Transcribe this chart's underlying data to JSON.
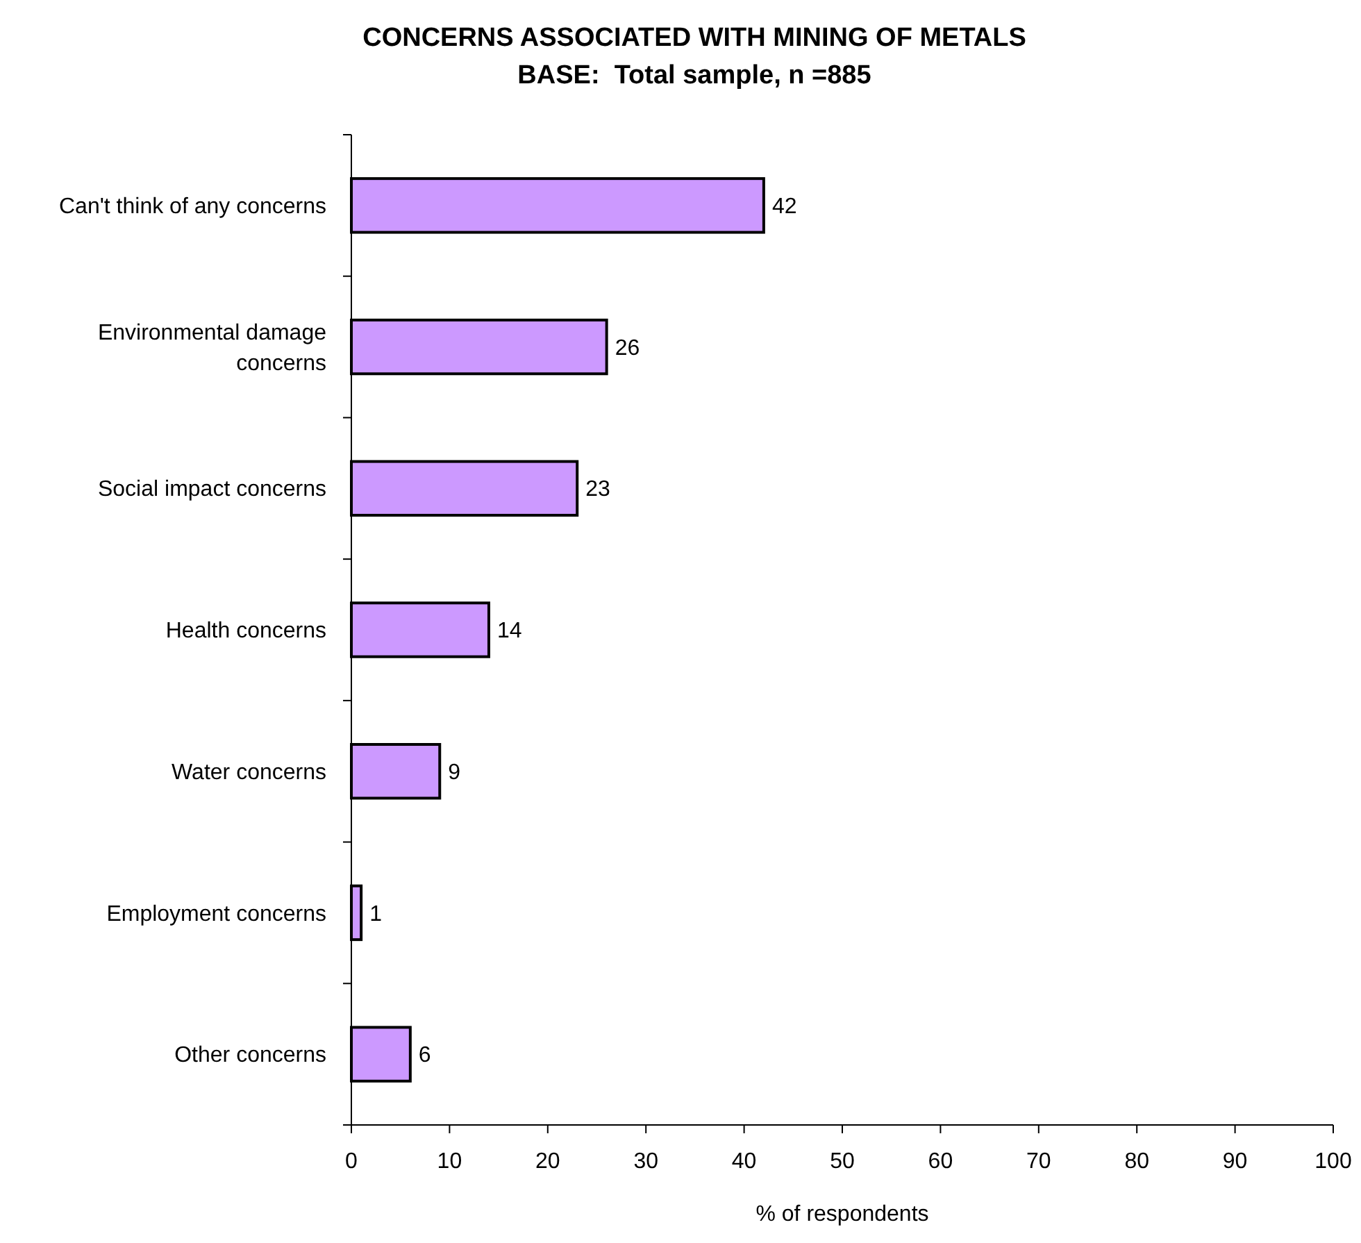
{
  "chart_data": {
    "type": "bar",
    "orientation": "horizontal",
    "title": "CONCERNS ASSOCIATED WITH MINING OF METALS",
    "subtitle": "BASE:  Total sample, n =885",
    "xlabel": "% of respondents",
    "categories": [
      "Can't think of any concerns",
      "Environmental damage concerns",
      "Social impact concerns",
      "Health concerns",
      "Water concerns",
      "Employment concerns",
      "Other concerns"
    ],
    "values": [
      42,
      26,
      23,
      14,
      9,
      1,
      6
    ],
    "color": "#cc99ff",
    "xlim": [
      0,
      100
    ],
    "xticks": [
      0,
      10,
      20,
      30,
      40,
      50,
      60,
      70,
      80,
      90,
      100
    ],
    "grid": false,
    "data_labels": true
  }
}
